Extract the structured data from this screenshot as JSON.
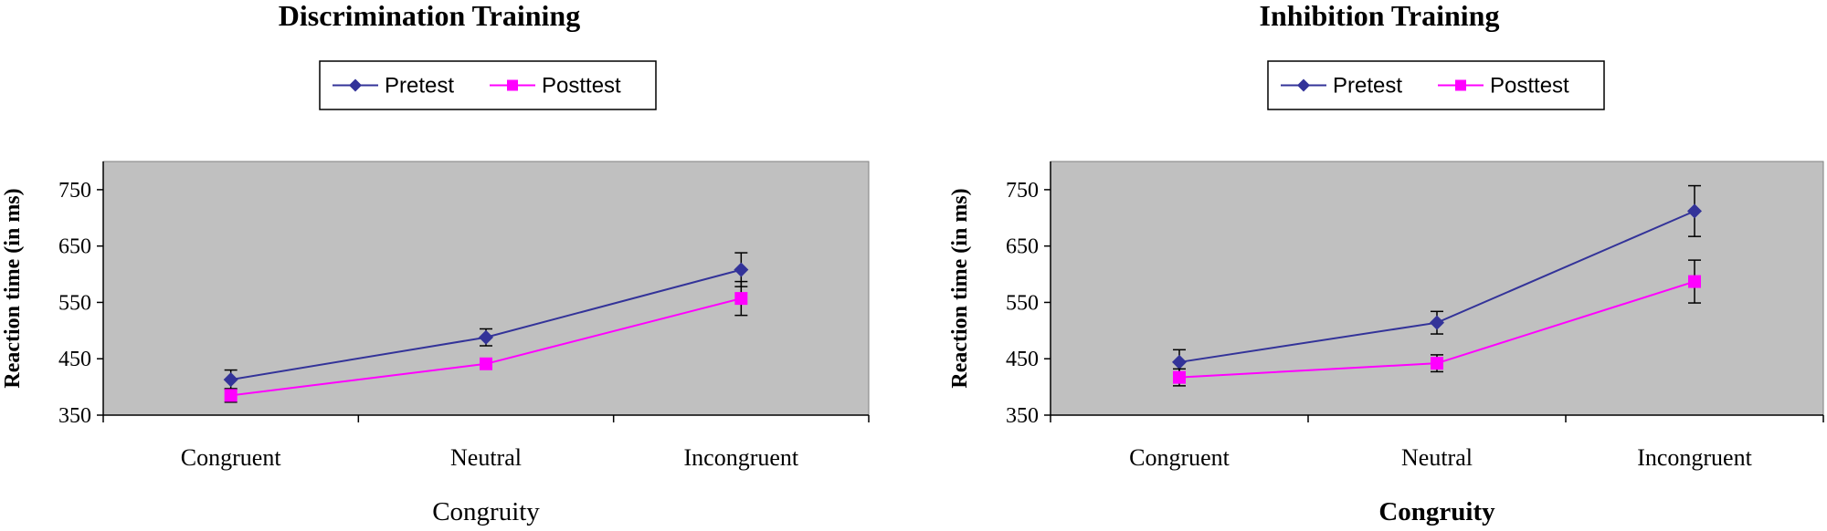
{
  "chart_data": [
    {
      "type": "line",
      "title": "Discrimination Training",
      "xlabel": "Congruity",
      "xlabel_bold": false,
      "ylabel": "Reaction time (in ms)",
      "ylim": [
        350,
        800
      ],
      "yticks": [
        "350",
        "450",
        "550",
        "650",
        "750"
      ],
      "categories": [
        "Congruent",
        "Neutral",
        "Incongruent"
      ],
      "grid": false,
      "plot_background": "#c0c0c0",
      "legend_position": "top",
      "series": [
        {
          "name": "Pretest",
          "values": [
            413,
            488,
            608
          ],
          "error": [
            17,
            15,
            30
          ],
          "color": "#333399",
          "marker": "diamond"
        },
        {
          "name": "Posttest",
          "values": [
            385,
            441,
            557
          ],
          "error": [
            12,
            8,
            30
          ],
          "color": "#ff00ff",
          "marker": "square"
        }
      ]
    },
    {
      "type": "line",
      "title": "Inhibition Training",
      "xlabel": "Congruity",
      "xlabel_bold": true,
      "ylabel": "Reaction time (in ms)",
      "ylim": [
        350,
        800
      ],
      "yticks": [
        "350",
        "450",
        "550",
        "650",
        "750"
      ],
      "categories": [
        "Congruent",
        "Neutral",
        "Incongruent"
      ],
      "grid": false,
      "plot_background": "#c0c0c0",
      "legend_position": "top",
      "series": [
        {
          "name": "Pretest",
          "values": [
            444,
            514,
            712
          ],
          "error": [
            22,
            20,
            45
          ],
          "color": "#333399",
          "marker": "diamond"
        },
        {
          "name": "Posttest",
          "values": [
            417,
            442,
            587
          ],
          "error": [
            15,
            15,
            38
          ],
          "color": "#ff00ff",
          "marker": "square"
        }
      ]
    }
  ]
}
